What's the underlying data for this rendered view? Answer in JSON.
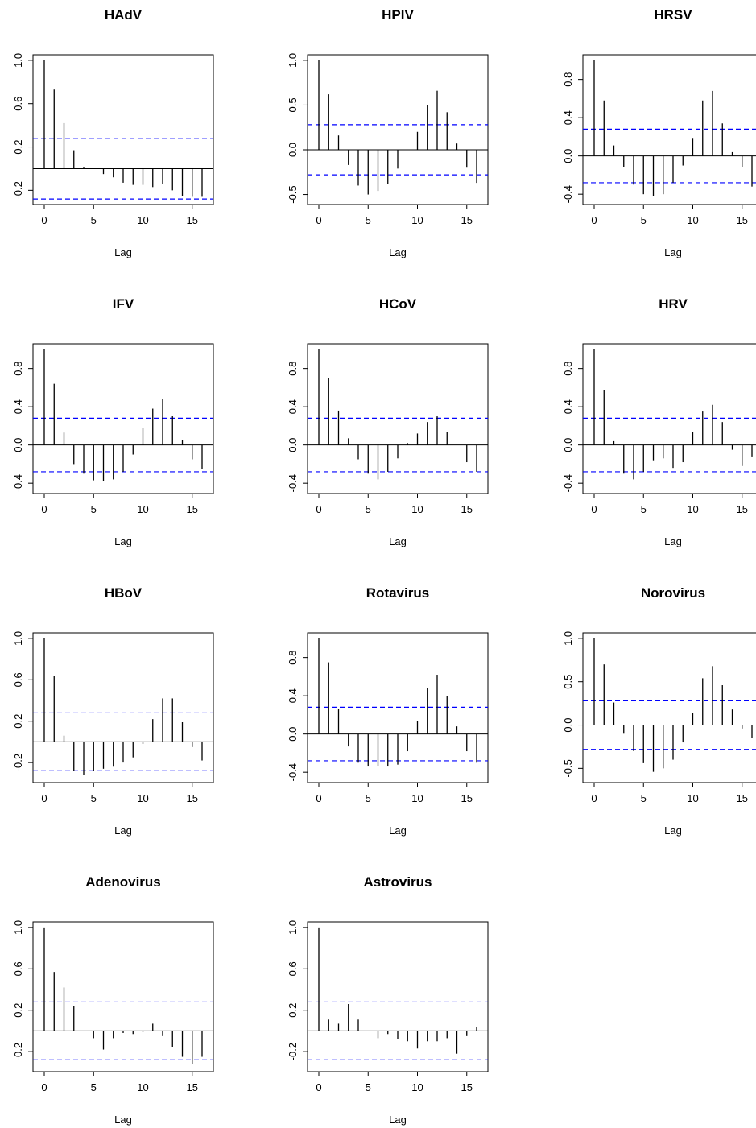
{
  "chart_data": [
    {
      "type": "acf",
      "title": "HAdV",
      "xlabel": "Lag",
      "xlim": [
        0,
        16
      ],
      "ylim": [
        -0.28,
        1.0
      ],
      "yticks": [
        -0.2,
        0.2,
        0.6,
        1.0
      ],
      "ytick_labels": [
        "-0.2",
        "0.2",
        "0.6",
        "1.0"
      ],
      "xticks": [
        0,
        5,
        10,
        15
      ],
      "xtick_labels": [
        "0",
        "5",
        "10",
        "15"
      ],
      "ci": [
        0.28,
        -0.28
      ],
      "lags": [
        0,
        1,
        2,
        3,
        4,
        5,
        6,
        7,
        8,
        9,
        10,
        11,
        12,
        13,
        14,
        15,
        16
      ],
      "acf": [
        1.0,
        0.73,
        0.42,
        0.17,
        0.01,
        0.0,
        -0.05,
        -0.08,
        -0.13,
        -0.15,
        -0.15,
        -0.17,
        -0.14,
        -0.2,
        -0.25,
        -0.26,
        -0.26
      ]
    },
    {
      "type": "acf",
      "title": "HPIV",
      "xlabel": "Lag",
      "xlim": [
        0,
        16
      ],
      "ylim": [
        -0.55,
        1.0
      ],
      "yticks": [
        -0.5,
        0.0,
        0.5,
        1.0
      ],
      "ytick_labels": [
        "-0.5",
        "0.0",
        "0.5",
        "1.0"
      ],
      "xticks": [
        0,
        5,
        10,
        15
      ],
      "xtick_labels": [
        "0",
        "5",
        "10",
        "15"
      ],
      "ci": [
        0.28,
        -0.28
      ],
      "lags": [
        0,
        1,
        2,
        3,
        4,
        5,
        6,
        7,
        8,
        9,
        10,
        11,
        12,
        13,
        14,
        15,
        16
      ],
      "acf": [
        1.0,
        0.62,
        0.16,
        -0.17,
        -0.4,
        -0.5,
        -0.46,
        -0.38,
        -0.21,
        0.0,
        0.2,
        0.5,
        0.66,
        0.42,
        0.07,
        -0.2,
        -0.37
      ]
    },
    {
      "type": "acf",
      "title": "HRSV",
      "xlabel": "Lag",
      "xlim": [
        0,
        16
      ],
      "ylim": [
        -0.45,
        1.0
      ],
      "yticks": [
        -0.4,
        0.0,
        0.4,
        0.8
      ],
      "ytick_labels": [
        "-0.4",
        "0.0",
        "0.4",
        "0.8"
      ],
      "xticks": [
        0,
        5,
        10,
        15
      ],
      "xtick_labels": [
        "0",
        "5",
        "10",
        "15"
      ],
      "ci": [
        0.28,
        -0.28
      ],
      "lags": [
        0,
        1,
        2,
        3,
        4,
        5,
        6,
        7,
        8,
        9,
        10,
        11,
        12,
        13,
        14,
        15,
        16
      ],
      "acf": [
        1.0,
        0.58,
        0.11,
        -0.12,
        -0.3,
        -0.4,
        -0.42,
        -0.4,
        -0.28,
        -0.1,
        0.18,
        0.58,
        0.68,
        0.34,
        0.04,
        -0.12,
        -0.32
      ]
    },
    {
      "type": "acf",
      "title": "IFV",
      "xlabel": "Lag",
      "xlim": [
        0,
        16
      ],
      "ylim": [
        -0.45,
        1.0
      ],
      "yticks": [
        -0.4,
        0.0,
        0.4,
        0.8
      ],
      "ytick_labels": [
        "-0.4",
        "0.0",
        "0.4",
        "0.8"
      ],
      "xticks": [
        0,
        5,
        10,
        15
      ],
      "xtick_labels": [
        "0",
        "5",
        "10",
        "15"
      ],
      "ci": [
        0.28,
        -0.28
      ],
      "lags": [
        0,
        1,
        2,
        3,
        4,
        5,
        6,
        7,
        8,
        9,
        10,
        11,
        12,
        13,
        14,
        15,
        16
      ],
      "acf": [
        1.0,
        0.64,
        0.13,
        -0.2,
        -0.3,
        -0.37,
        -0.38,
        -0.36,
        -0.28,
        -0.1,
        0.18,
        0.38,
        0.48,
        0.3,
        0.05,
        -0.15,
        -0.25
      ]
    },
    {
      "type": "acf",
      "title": "HCoV",
      "xlabel": "Lag",
      "xlim": [
        0,
        16
      ],
      "ylim": [
        -0.45,
        1.0
      ],
      "yticks": [
        -0.4,
        0.0,
        0.4,
        0.8
      ],
      "ytick_labels": [
        "-0.4",
        "0.0",
        "0.4",
        "0.8"
      ],
      "xticks": [
        0,
        5,
        10,
        15
      ],
      "xtick_labels": [
        "0",
        "5",
        "10",
        "15"
      ],
      "ci": [
        0.28,
        -0.28
      ],
      "lags": [
        0,
        1,
        2,
        3,
        4,
        5,
        6,
        7,
        8,
        9,
        10,
        11,
        12,
        13,
        14,
        15,
        16
      ],
      "acf": [
        1.0,
        0.7,
        0.36,
        0.07,
        -0.15,
        -0.3,
        -0.36,
        -0.28,
        -0.14,
        0.02,
        0.12,
        0.24,
        0.3,
        0.14,
        0.0,
        -0.18,
        -0.28
      ]
    },
    {
      "type": "acf",
      "title": "HRV",
      "xlabel": "Lag",
      "xlim": [
        0,
        16
      ],
      "ylim": [
        -0.45,
        1.0
      ],
      "yticks": [
        -0.4,
        0.0,
        0.4,
        0.8
      ],
      "ytick_labels": [
        "-0.4",
        "0.0",
        "0.4",
        "0.8"
      ],
      "xticks": [
        0,
        5,
        10,
        15
      ],
      "xtick_labels": [
        "0",
        "5",
        "10",
        "15"
      ],
      "ci": [
        0.28,
        -0.28
      ],
      "lags": [
        0,
        1,
        2,
        3,
        4,
        5,
        6,
        7,
        8,
        9,
        10,
        11,
        12,
        13,
        14,
        15,
        16
      ],
      "acf": [
        1.0,
        0.57,
        0.04,
        -0.3,
        -0.36,
        -0.28,
        -0.16,
        -0.14,
        -0.24,
        -0.18,
        0.14,
        0.35,
        0.42,
        0.24,
        -0.05,
        -0.22,
        -0.12
      ]
    },
    {
      "type": "acf",
      "title": "HBoV",
      "xlabel": "Lag",
      "xlim": [
        0,
        16
      ],
      "ylim": [
        -0.34,
        1.0
      ],
      "yticks": [
        -0.2,
        0.2,
        0.6,
        1.0
      ],
      "ytick_labels": [
        "-0.2",
        "0.2",
        "0.6",
        "1.0"
      ],
      "xticks": [
        0,
        5,
        10,
        15
      ],
      "xtick_labels": [
        "0",
        "5",
        "10",
        "15"
      ],
      "ci": [
        0.28,
        -0.28
      ],
      "lags": [
        0,
        1,
        2,
        3,
        4,
        5,
        6,
        7,
        8,
        9,
        10,
        11,
        12,
        13,
        14,
        15,
        16
      ],
      "acf": [
        1.0,
        0.64,
        0.06,
        -0.28,
        -0.32,
        -0.28,
        -0.26,
        -0.24,
        -0.2,
        -0.15,
        -0.02,
        0.22,
        0.42,
        0.42,
        0.19,
        -0.05,
        -0.18
      ]
    },
    {
      "type": "acf",
      "title": "Rotavirus",
      "xlabel": "Lag",
      "xlim": [
        0,
        16
      ],
      "ylim": [
        -0.45,
        1.0
      ],
      "yticks": [
        -0.4,
        0.0,
        0.4,
        0.8
      ],
      "ytick_labels": [
        "-0.4",
        "0.0",
        "0.4",
        "0.8"
      ],
      "xticks": [
        0,
        5,
        10,
        15
      ],
      "xtick_labels": [
        "0",
        "5",
        "10",
        "15"
      ],
      "ci": [
        0.28,
        -0.28
      ],
      "lags": [
        0,
        1,
        2,
        3,
        4,
        5,
        6,
        7,
        8,
        9,
        10,
        11,
        12,
        13,
        14,
        15,
        16
      ],
      "acf": [
        1.0,
        0.75,
        0.26,
        -0.13,
        -0.3,
        -0.34,
        -0.34,
        -0.34,
        -0.32,
        -0.18,
        0.14,
        0.48,
        0.62,
        0.4,
        0.08,
        -0.18,
        -0.3
      ]
    },
    {
      "type": "acf",
      "title": "Norovirus",
      "xlabel": "Lag",
      "xlim": [
        0,
        16
      ],
      "ylim": [
        -0.6,
        1.0
      ],
      "yticks": [
        -0.5,
        0.0,
        0.5,
        1.0
      ],
      "ytick_labels": [
        "-0.5",
        "0.0",
        "0.5",
        "1.0"
      ],
      "xticks": [
        0,
        5,
        10,
        15
      ],
      "xtick_labels": [
        "0",
        "5",
        "10",
        "15"
      ],
      "ci": [
        0.28,
        -0.28
      ],
      "lags": [
        0,
        1,
        2,
        3,
        4,
        5,
        6,
        7,
        8,
        9,
        10,
        11,
        12,
        13,
        14,
        15,
        16
      ],
      "acf": [
        1.0,
        0.7,
        0.26,
        -0.1,
        -0.3,
        -0.44,
        -0.54,
        -0.5,
        -0.4,
        -0.2,
        0.14,
        0.54,
        0.68,
        0.46,
        0.18,
        -0.04,
        -0.15
      ]
    },
    {
      "type": "acf",
      "title": "Adenovirus",
      "xlabel": "Lag",
      "xlim": [
        0,
        16
      ],
      "ylim": [
        -0.34,
        1.0
      ],
      "yticks": [
        -0.2,
        0.2,
        0.6,
        1.0
      ],
      "ytick_labels": [
        "-0.2",
        "0.2",
        "0.6",
        "1.0"
      ],
      "xticks": [
        0,
        5,
        10,
        15
      ],
      "xtick_labels": [
        "0",
        "5",
        "10",
        "15"
      ],
      "ci": [
        0.28,
        -0.28
      ],
      "lags": [
        0,
        1,
        2,
        3,
        4,
        5,
        6,
        7,
        8,
        9,
        10,
        11,
        12,
        13,
        14,
        15,
        16
      ],
      "acf": [
        1.0,
        0.57,
        0.42,
        0.24,
        0.0,
        -0.07,
        -0.18,
        -0.07,
        -0.02,
        -0.03,
        -0.01,
        0.07,
        -0.05,
        -0.16,
        -0.25,
        -0.32,
        -0.25
      ]
    },
    {
      "type": "acf",
      "title": "Astrovirus",
      "xlabel": "Lag",
      "xlim": [
        0,
        16
      ],
      "ylim": [
        -0.34,
        1.0
      ],
      "yticks": [
        -0.2,
        0.2,
        0.6,
        1.0
      ],
      "ytick_labels": [
        "-0.2",
        "0.2",
        "0.6",
        "1.0"
      ],
      "xticks": [
        0,
        5,
        10,
        15
      ],
      "xtick_labels": [
        "0",
        "5",
        "10",
        "15"
      ],
      "ci": [
        0.28,
        -0.28
      ],
      "lags": [
        0,
        1,
        2,
        3,
        4,
        5,
        6,
        7,
        8,
        9,
        10,
        11,
        12,
        13,
        14,
        15,
        16
      ],
      "acf": [
        1.0,
        0.11,
        0.07,
        0.26,
        0.11,
        0.0,
        -0.07,
        -0.03,
        -0.08,
        -0.1,
        -0.17,
        -0.1,
        -0.1,
        -0.07,
        -0.22,
        -0.05,
        0.04
      ]
    }
  ],
  "colors": {
    "bars": "#000000",
    "ci_line": "#0000ff",
    "axis": "#000000"
  }
}
